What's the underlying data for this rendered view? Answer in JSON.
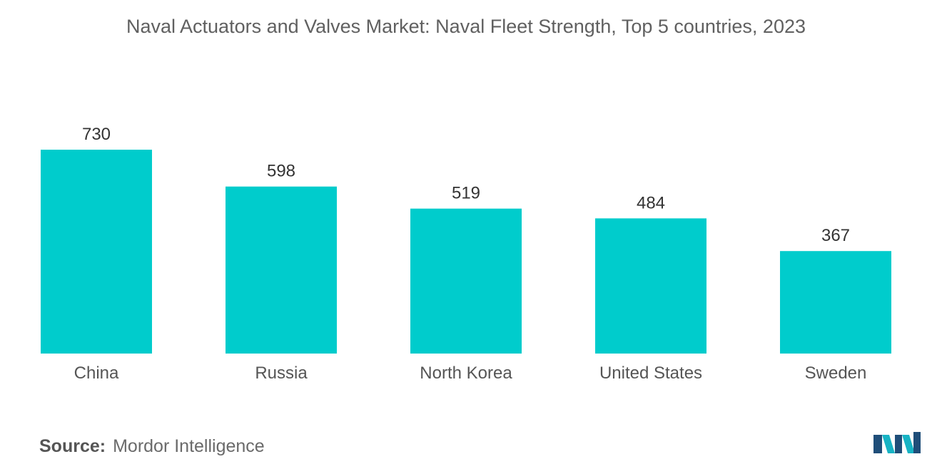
{
  "title": "Naval Actuators and Valves Market: Naval Fleet Strength, Top 5 countries, 2023",
  "source": {
    "label": "Source:",
    "text": "Mordor Intelligence"
  },
  "logo": {
    "icon": "mordor-intelligence-logo",
    "colors": [
      "#1f4e79",
      "#17b3c4"
    ]
  },
  "colors": {
    "bar": "#00cccc",
    "text": "#606060"
  },
  "chart_data": {
    "type": "bar",
    "title": "Naval Actuators and Valves Market: Naval Fleet Strength, Top 5 countries, 2023",
    "xlabel": "",
    "ylabel": "",
    "categories": [
      "China",
      "Russia",
      "North Korea",
      "United States",
      "Sweden"
    ],
    "values": [
      730,
      598,
      519,
      484,
      367
    ],
    "data_labels": [
      "730",
      "598",
      "519",
      "484",
      "367"
    ],
    "ylim": [
      0,
      730
    ],
    "grid": false,
    "legend": "none"
  }
}
